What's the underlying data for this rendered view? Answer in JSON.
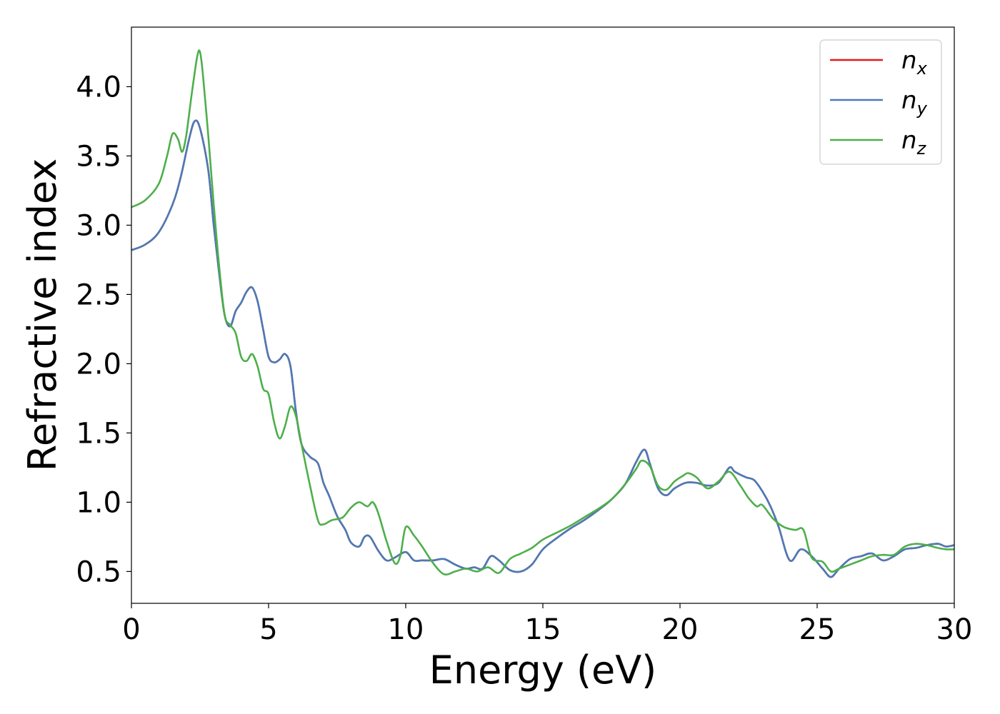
{
  "chart_data": {
    "type": "line",
    "title": "",
    "xlabel": "Energy (eV)",
    "ylabel": "Refractive index",
    "xlim": [
      0,
      30
    ],
    "ylim": [
      0.27,
      4.43
    ],
    "xticks": [
      "0",
      "5",
      "10",
      "15",
      "20",
      "25",
      "30"
    ],
    "yticks": [
      "0.5",
      "1.0",
      "1.5",
      "2.0",
      "2.5",
      "3.0",
      "3.5",
      "4.0"
    ],
    "grid": false,
    "legend_position": "top-right",
    "series": [
      {
        "name": "n_x",
        "legend_base": "n",
        "legend_sub": "x",
        "color": "#e41a1c",
        "x": [
          0,
          0.5,
          1.0,
          1.5,
          1.8,
          2.1,
          2.3,
          2.5,
          2.8,
          3.0,
          3.2,
          3.4,
          3.6,
          3.8,
          4.0,
          4.2,
          4.4,
          4.6,
          4.8,
          5.0,
          5.2,
          5.4,
          5.6,
          5.8,
          6.0,
          6.2,
          6.5,
          6.8,
          7.0,
          7.2,
          7.5,
          7.8,
          8.0,
          8.3,
          8.5,
          8.7,
          9.0,
          9.3,
          9.6,
          10.0,
          10.3,
          10.6,
          11.0,
          11.4,
          11.8,
          12.2,
          12.5,
          12.8,
          13.1,
          13.4,
          13.8,
          14.2,
          14.6,
          15.0,
          15.5,
          16.0,
          16.5,
          17.0,
          17.5,
          18.0,
          18.4,
          18.7,
          18.9,
          19.2,
          19.5,
          19.8,
          20.2,
          20.6,
          21.0,
          21.4,
          21.8,
          22.0,
          22.4,
          22.7,
          23.0,
          23.3,
          23.6,
          24.0,
          24.4,
          24.8,
          25.2,
          25.5,
          25.8,
          26.2,
          26.6,
          27.0,
          27.4,
          27.8,
          28.2,
          28.6,
          29.0,
          29.4,
          29.7,
          30.0
        ],
        "y": [
          2.82,
          2.86,
          2.95,
          3.15,
          3.35,
          3.62,
          3.75,
          3.7,
          3.4,
          3.0,
          2.65,
          2.35,
          2.27,
          2.38,
          2.44,
          2.52,
          2.55,
          2.45,
          2.25,
          2.05,
          2.01,
          2.03,
          2.07,
          1.98,
          1.65,
          1.42,
          1.33,
          1.28,
          1.14,
          1.05,
          0.9,
          0.8,
          0.71,
          0.68,
          0.75,
          0.75,
          0.65,
          0.58,
          0.6,
          0.64,
          0.58,
          0.58,
          0.58,
          0.59,
          0.55,
          0.52,
          0.53,
          0.52,
          0.61,
          0.58,
          0.51,
          0.5,
          0.55,
          0.66,
          0.74,
          0.81,
          0.87,
          0.94,
          1.02,
          1.13,
          1.29,
          1.38,
          1.28,
          1.1,
          1.05,
          1.1,
          1.14,
          1.14,
          1.12,
          1.14,
          1.25,
          1.22,
          1.18,
          1.16,
          1.08,
          0.97,
          0.82,
          0.58,
          0.66,
          0.61,
          0.52,
          0.46,
          0.52,
          0.59,
          0.61,
          0.63,
          0.58,
          0.61,
          0.66,
          0.67,
          0.69,
          0.7,
          0.68,
          0.69
        ]
      },
      {
        "name": "n_y",
        "legend_base": "n",
        "legend_sub": "y",
        "color": "#4a7bb7",
        "x": [
          0,
          0.5,
          1.0,
          1.5,
          1.8,
          2.1,
          2.3,
          2.5,
          2.8,
          3.0,
          3.2,
          3.4,
          3.6,
          3.8,
          4.0,
          4.2,
          4.4,
          4.6,
          4.8,
          5.0,
          5.2,
          5.4,
          5.6,
          5.8,
          6.0,
          6.2,
          6.5,
          6.8,
          7.0,
          7.2,
          7.5,
          7.8,
          8.0,
          8.3,
          8.5,
          8.7,
          9.0,
          9.3,
          9.6,
          10.0,
          10.3,
          10.6,
          11.0,
          11.4,
          11.8,
          12.2,
          12.5,
          12.8,
          13.1,
          13.4,
          13.8,
          14.2,
          14.6,
          15.0,
          15.5,
          16.0,
          16.5,
          17.0,
          17.5,
          18.0,
          18.4,
          18.7,
          18.9,
          19.2,
          19.5,
          19.8,
          20.2,
          20.6,
          21.0,
          21.4,
          21.8,
          22.0,
          22.4,
          22.7,
          23.0,
          23.3,
          23.6,
          24.0,
          24.4,
          24.8,
          25.2,
          25.5,
          25.8,
          26.2,
          26.6,
          27.0,
          27.4,
          27.8,
          28.2,
          28.6,
          29.0,
          29.4,
          29.7,
          30.0
        ],
        "y": [
          2.82,
          2.86,
          2.95,
          3.15,
          3.35,
          3.62,
          3.75,
          3.7,
          3.4,
          3.0,
          2.65,
          2.35,
          2.27,
          2.38,
          2.44,
          2.52,
          2.55,
          2.45,
          2.25,
          2.05,
          2.01,
          2.03,
          2.07,
          1.98,
          1.65,
          1.42,
          1.33,
          1.28,
          1.14,
          1.05,
          0.9,
          0.8,
          0.71,
          0.68,
          0.75,
          0.75,
          0.65,
          0.58,
          0.6,
          0.64,
          0.58,
          0.58,
          0.58,
          0.59,
          0.55,
          0.52,
          0.53,
          0.52,
          0.61,
          0.58,
          0.51,
          0.5,
          0.55,
          0.66,
          0.74,
          0.81,
          0.87,
          0.94,
          1.02,
          1.13,
          1.29,
          1.38,
          1.28,
          1.1,
          1.05,
          1.1,
          1.14,
          1.14,
          1.12,
          1.14,
          1.25,
          1.22,
          1.18,
          1.16,
          1.08,
          0.97,
          0.82,
          0.58,
          0.66,
          0.61,
          0.52,
          0.46,
          0.52,
          0.59,
          0.61,
          0.63,
          0.58,
          0.61,
          0.66,
          0.67,
          0.69,
          0.7,
          0.68,
          0.69
        ]
      },
      {
        "name": "n_z",
        "legend_base": "n",
        "legend_sub": "z",
        "color": "#4daf4a",
        "x": [
          0,
          0.5,
          1.0,
          1.3,
          1.5,
          1.7,
          1.85,
          2.0,
          2.2,
          2.4,
          2.5,
          2.6,
          2.8,
          3.0,
          3.2,
          3.4,
          3.6,
          3.8,
          4.0,
          4.2,
          4.4,
          4.6,
          4.8,
          5.0,
          5.2,
          5.4,
          5.6,
          5.8,
          6.0,
          6.2,
          6.5,
          6.8,
          7.0,
          7.3,
          7.7,
          8.0,
          8.3,
          8.6,
          8.8,
          9.0,
          9.3,
          9.6,
          9.8,
          10.0,
          10.3,
          10.6,
          11.0,
          11.4,
          11.8,
          12.2,
          12.6,
          13.0,
          13.4,
          13.8,
          14.2,
          14.6,
          15.0,
          15.5,
          16.0,
          16.5,
          17.0,
          17.5,
          18.0,
          18.4,
          18.6,
          18.9,
          19.2,
          19.5,
          19.8,
          20.1,
          20.3,
          20.6,
          21.0,
          21.4,
          21.8,
          22.2,
          22.5,
          22.8,
          23.0,
          23.4,
          23.8,
          24.2,
          24.5,
          24.8,
          25.2,
          25.5,
          25.8,
          26.2,
          26.6,
          27.0,
          27.4,
          27.8,
          28.2,
          28.6,
          29.0,
          29.4,
          29.7,
          30.0
        ],
        "y": [
          3.13,
          3.18,
          3.3,
          3.5,
          3.66,
          3.62,
          3.53,
          3.65,
          3.95,
          4.22,
          4.25,
          4.1,
          3.65,
          3.15,
          2.7,
          2.35,
          2.28,
          2.22,
          2.05,
          2.02,
          2.07,
          1.98,
          1.82,
          1.78,
          1.58,
          1.46,
          1.55,
          1.69,
          1.62,
          1.42,
          1.13,
          0.87,
          0.84,
          0.87,
          0.89,
          0.96,
          1.0,
          0.97,
          1.0,
          0.92,
          0.72,
          0.56,
          0.61,
          0.82,
          0.76,
          0.68,
          0.56,
          0.48,
          0.5,
          0.52,
          0.5,
          0.53,
          0.49,
          0.59,
          0.63,
          0.67,
          0.73,
          0.78,
          0.83,
          0.89,
          0.95,
          1.02,
          1.13,
          1.24,
          1.3,
          1.26,
          1.12,
          1.09,
          1.15,
          1.19,
          1.21,
          1.18,
          1.1,
          1.15,
          1.22,
          1.12,
          1.03,
          0.97,
          0.98,
          0.88,
          0.82,
          0.8,
          0.8,
          0.6,
          0.57,
          0.5,
          0.52,
          0.55,
          0.58,
          0.61,
          0.62,
          0.62,
          0.68,
          0.7,
          0.69,
          0.67,
          0.66,
          0.66
        ]
      }
    ]
  }
}
